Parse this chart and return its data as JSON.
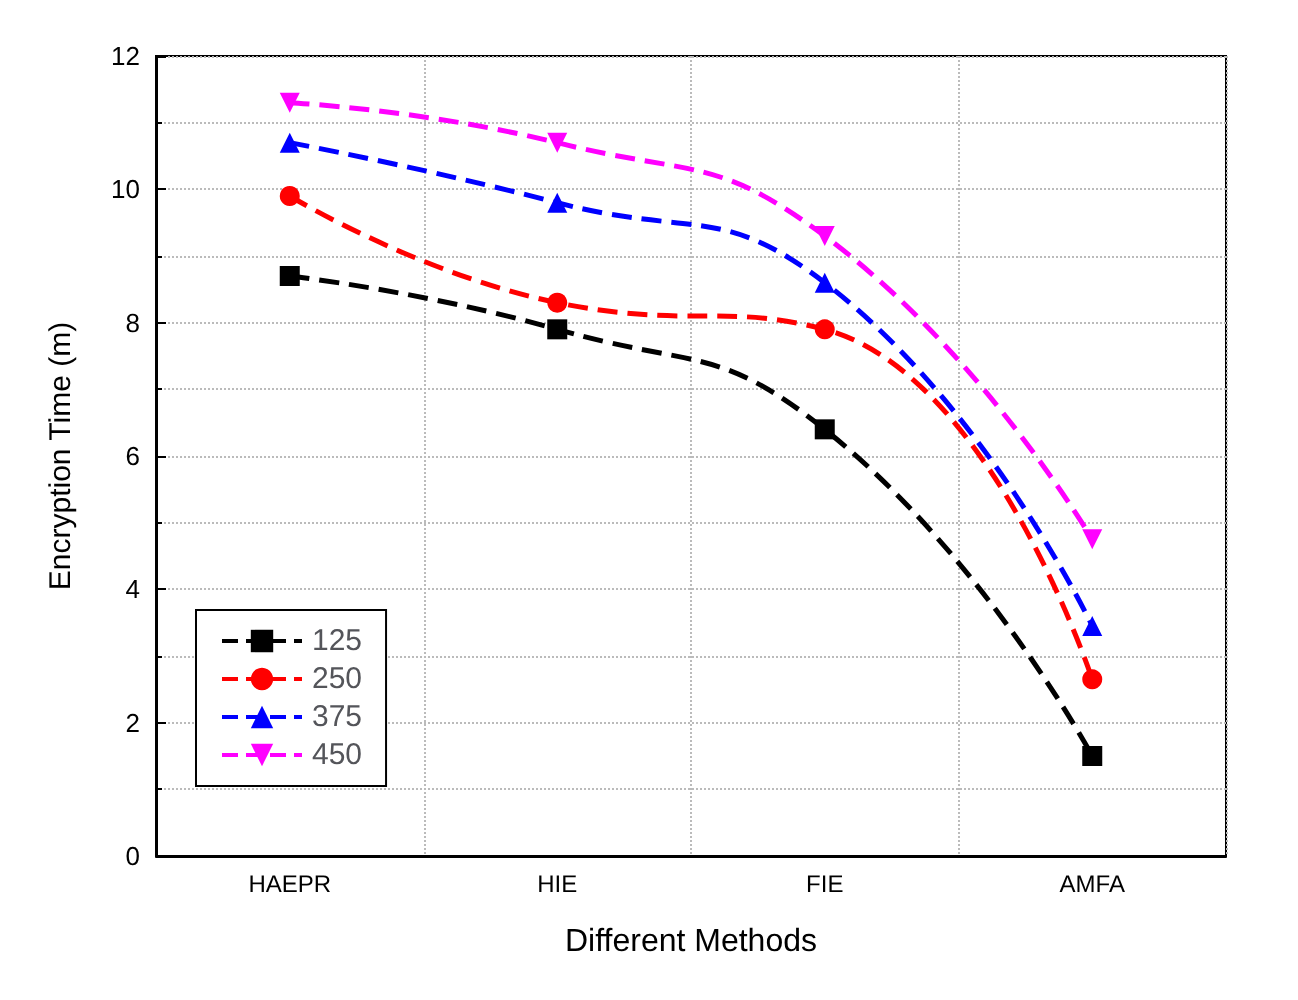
{
  "chart_data": {
    "type": "line",
    "xlabel": "Different Methods",
    "ylabel": "Encryption Time (m)",
    "categories": [
      "HAEPR",
      "HIE",
      "FIE",
      "AMFA"
    ],
    "series": [
      {
        "name": "125",
        "color": "#000000",
        "marker": "square",
        "values": [
          8.7,
          7.9,
          6.4,
          1.5
        ]
      },
      {
        "name": "250",
        "color": "#ff0000",
        "marker": "circle",
        "values": [
          9.9,
          8.3,
          7.9,
          2.65
        ]
      },
      {
        "name": "375",
        "color": "#0000ff",
        "marker": "triangle",
        "values": [
          10.7,
          9.8,
          8.6,
          3.45
        ]
      },
      {
        "name": "450",
        "color": "#ff00ff",
        "marker": "triangle-down",
        "values": [
          11.3,
          10.7,
          9.3,
          4.75
        ]
      }
    ],
    "ylim": [
      0,
      12
    ],
    "yticks": [
      0,
      2,
      4,
      6,
      8,
      10,
      12
    ],
    "grid": true,
    "legend": "bottom left",
    "line_style": "dashed"
  }
}
